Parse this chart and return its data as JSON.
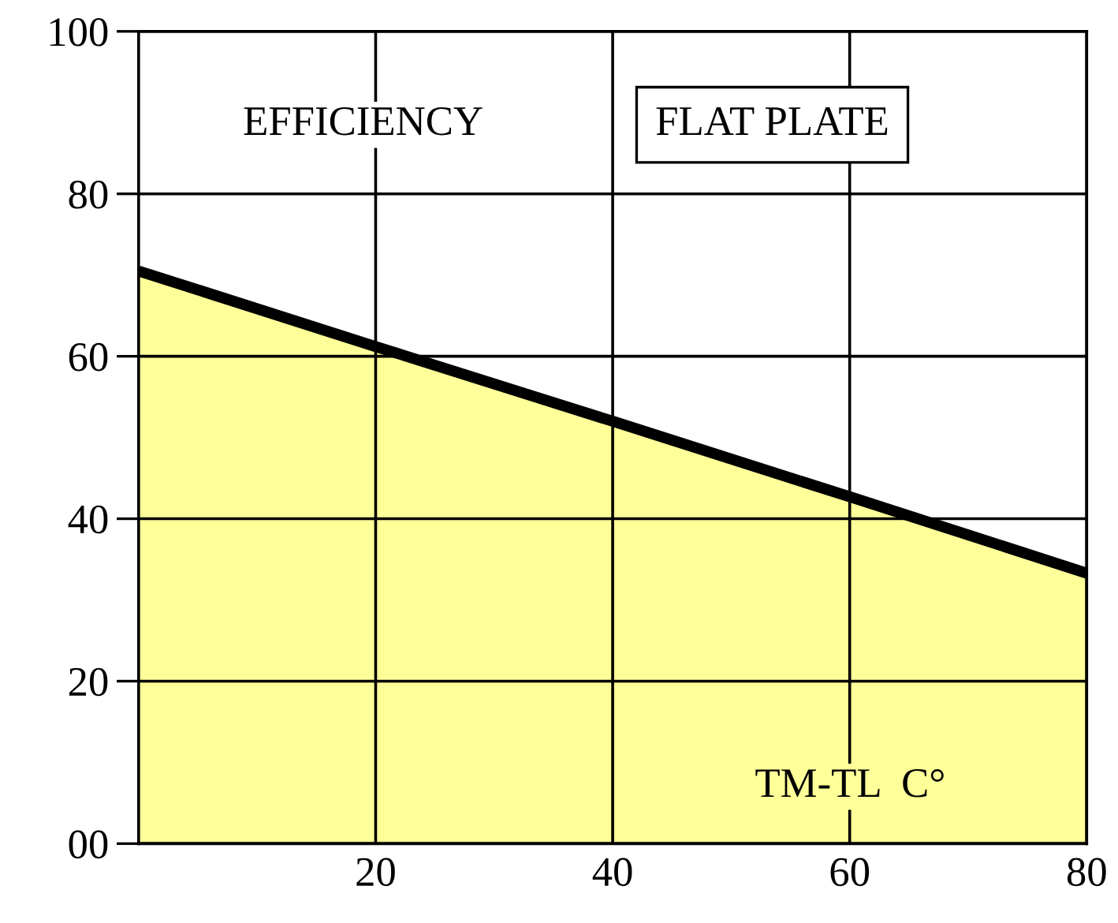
{
  "chart_data": {
    "type": "area",
    "title": "FLAT PLATE",
    "ylabel": "EFFICIENCY",
    "xlabel": "TM-TL  C°",
    "x": [
      0,
      20,
      40,
      60,
      80
    ],
    "series": [
      {
        "color": "#ffff99",
        "values": [
          70.5,
          61.2,
          52,
          42.7,
          33.3
        ]
      }
    ],
    "xlim": [
      0,
      80
    ],
    "xticks": [
      20,
      40,
      60,
      80
    ],
    "ylim": [
      0,
      100
    ],
    "yticks": [
      {
        "value": 0,
        "label": "00"
      },
      20,
      40,
      60,
      80,
      100
    ],
    "grid": true,
    "legend": false
  }
}
